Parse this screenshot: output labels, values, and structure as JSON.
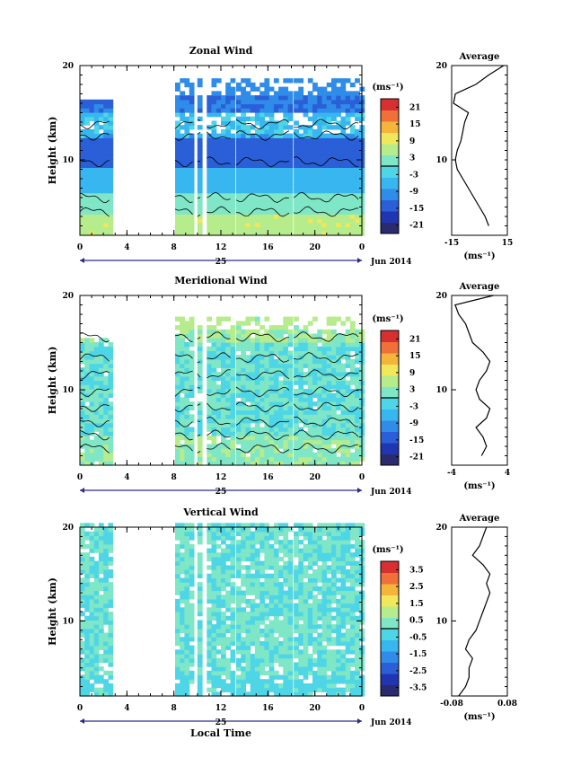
{
  "chart_data": [
    {
      "type": "heatmap",
      "title": "Zonal Wind",
      "ylabel": "Height (km)",
      "ylim": [
        2,
        20
      ],
      "y_ticks": [
        "10",
        "20"
      ],
      "x_ticks": [
        "0",
        "4",
        "8",
        "12",
        "16",
        "20",
        "0"
      ],
      "xlim": [
        0,
        24
      ],
      "date_label": "25",
      "month_label": "Jun 2014",
      "colorbar": {
        "unit": "(ms⁻¹)",
        "ticks": [
          "21",
          "15",
          "9",
          "3",
          "-3",
          "-9",
          "-15",
          "-21"
        ],
        "range": [
          -24,
          24
        ]
      },
      "profile": {
        "title": "Average",
        "x_ticks": [
          "-15",
          "15"
        ],
        "xlim": [
          -15,
          15
        ],
        "xlabel": "(ms⁻¹)",
        "y_ticks": [
          "10",
          "20"
        ],
        "h": [
          3,
          4,
          5,
          6,
          7,
          8,
          9,
          10,
          11,
          12,
          13,
          14,
          15,
          16,
          17,
          18,
          19,
          20
        ],
        "v": [
          5,
          3,
          0,
          -3,
          -6,
          -9,
          -12,
          -13,
          -12,
          -10,
          -9,
          -8,
          -6,
          -14,
          -13,
          -2,
          5,
          13
        ]
      }
    },
    {
      "type": "heatmap",
      "title": "Meridional Wind",
      "ylabel": "Height (km)",
      "ylim": [
        2,
        20
      ],
      "y_ticks": [
        "10",
        "20"
      ],
      "x_ticks": [
        "0",
        "4",
        "8",
        "12",
        "16",
        "20",
        "0"
      ],
      "xlim": [
        0,
        24
      ],
      "date_label": "25",
      "month_label": "Jun 2014",
      "colorbar": {
        "unit": "(ms⁻¹)",
        "ticks": [
          "21",
          "15",
          "9",
          "3",
          "-3",
          "-9",
          "-15",
          "-21"
        ],
        "range": [
          -24,
          24
        ]
      },
      "profile": {
        "title": "Average",
        "x_ticks": [
          "-4",
          "4"
        ],
        "xlim": [
          -4,
          4
        ],
        "xlabel": "(ms⁻¹)",
        "y_ticks": [
          "10",
          "20"
        ],
        "h": [
          3,
          4,
          5,
          6,
          7,
          8,
          9,
          10,
          11,
          12,
          13,
          14,
          15,
          16,
          17,
          18,
          19,
          20
        ],
        "v": [
          0.3,
          1,
          0.5,
          -0.5,
          1,
          1.5,
          0,
          -0.5,
          0,
          1,
          1.5,
          0.5,
          -1,
          -1.5,
          -2,
          -3,
          -3.5,
          2
        ]
      }
    },
    {
      "type": "heatmap",
      "title": "Vertical Wind",
      "ylabel": "Height (km)",
      "ylim": [
        2,
        20
      ],
      "y_ticks": [
        "10",
        "20"
      ],
      "x_ticks": [
        "0",
        "4",
        "8",
        "12",
        "16",
        "20",
        "0"
      ],
      "xlim": [
        0,
        24
      ],
      "date_label": "25",
      "month_label": "Jun 2014",
      "xlabel": "Local Time",
      "colorbar": {
        "unit": "(ms⁻¹)",
        "ticks": [
          "3.5",
          "2.5",
          "1.5",
          "0.5",
          "-0.5",
          "-1.5",
          "-2.5",
          "-3.5"
        ],
        "range": [
          -4,
          4
        ]
      },
      "profile": {
        "title": "Average",
        "x_ticks": [
          "-0.08",
          "0.08"
        ],
        "xlim": [
          -0.08,
          0.08
        ],
        "xlabel": "(ms⁻¹)",
        "y_ticks": [
          "10",
          "20"
        ],
        "h": [
          2,
          3,
          4,
          5,
          6,
          7,
          8,
          9,
          10,
          11,
          12,
          13,
          14,
          15,
          16,
          17,
          18,
          19,
          20
        ],
        "v": [
          -0.06,
          -0.04,
          -0.03,
          -0.03,
          -0.02,
          -0.04,
          -0.03,
          -0.01,
          0.0,
          0.01,
          0.02,
          0.03,
          0.02,
          0.03,
          0.01,
          -0.02,
          0.0,
          0.01,
          0.02
        ]
      }
    }
  ]
}
